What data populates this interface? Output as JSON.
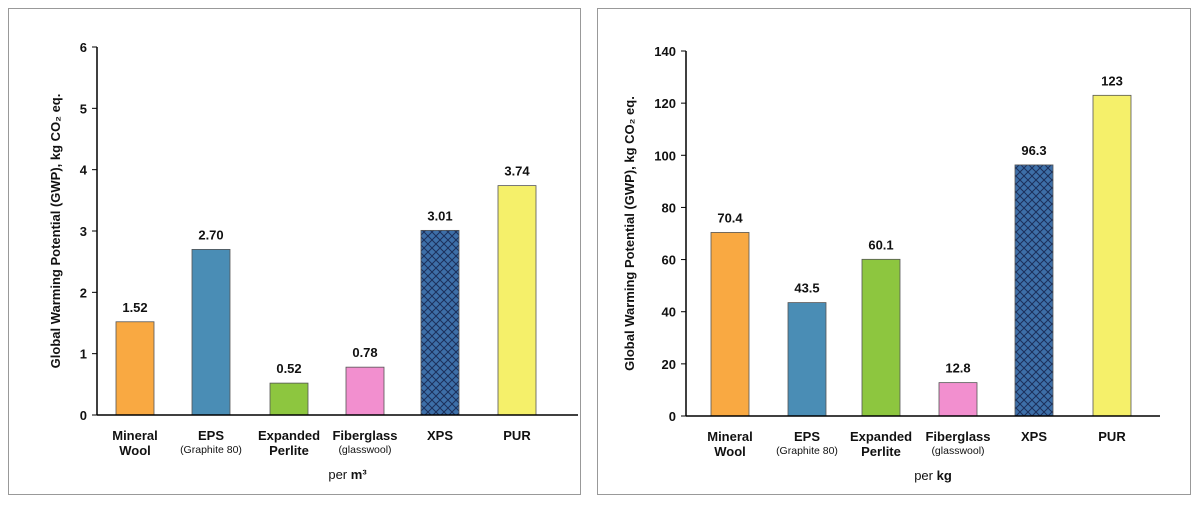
{
  "chart_data": [
    {
      "type": "bar",
      "ylabel": "Global Warming Potential (GWP), kg CO₂ eq.",
      "xlabel": {
        "text": "per",
        "unit": "m³"
      },
      "categories": [
        [
          "Mineral",
          "Wool"
        ],
        [
          "EPS"
        ],
        [
          "Expanded",
          "Perlite"
        ],
        [
          "Fiberglass"
        ],
        [
          "XPS"
        ],
        [
          "PUR"
        ]
      ],
      "category_notes": [
        null,
        "(Graphite 80)",
        null,
        "(glasswool)",
        null,
        null
      ],
      "values": [
        1.52,
        2.7,
        0.52,
        0.78,
        3.01,
        3.74
      ],
      "value_labels": [
        "1.52",
        "2.70",
        "0.52",
        "0.78",
        "3.01",
        "3.74"
      ],
      "colors": [
        "#f9a942",
        "#4a8db5",
        "#8dc63f",
        "#f28fcf",
        "#3d6fa8",
        "#f5f06a"
      ],
      "patterns": [
        null,
        null,
        null,
        null,
        "crosshatch",
        null
      ],
      "ylim": [
        0,
        6
      ],
      "yticks": [
        0,
        1,
        2,
        3,
        4,
        5,
        6
      ]
    },
    {
      "type": "bar",
      "ylabel": "Global Warming Potential (GWP), kg CO₂ eq.",
      "xlabel": {
        "text": "per",
        "unit": "kg"
      },
      "categories": [
        [
          "Mineral",
          "Wool"
        ],
        [
          "EPS"
        ],
        [
          "Expanded",
          "Perlite"
        ],
        [
          "Fiberglass"
        ],
        [
          "XPS"
        ],
        [
          "PUR"
        ]
      ],
      "category_notes": [
        null,
        "(Graphite 80)",
        null,
        "(glasswool)",
        null,
        null
      ],
      "values": [
        70.4,
        43.5,
        60.1,
        12.8,
        96.3,
        123
      ],
      "value_labels": [
        "70.4",
        "43.5",
        "60.1",
        "12.8",
        "96.3",
        "123"
      ],
      "colors": [
        "#f9a942",
        "#4a8db5",
        "#8dc63f",
        "#f28fcf",
        "#3d6fa8",
        "#f5f06a"
      ],
      "patterns": [
        null,
        null,
        null,
        null,
        "crosshatch",
        null
      ],
      "ylim": [
        0,
        140
      ],
      "yticks": [
        0,
        20,
        40,
        60,
        80,
        100,
        120,
        140
      ]
    }
  ]
}
